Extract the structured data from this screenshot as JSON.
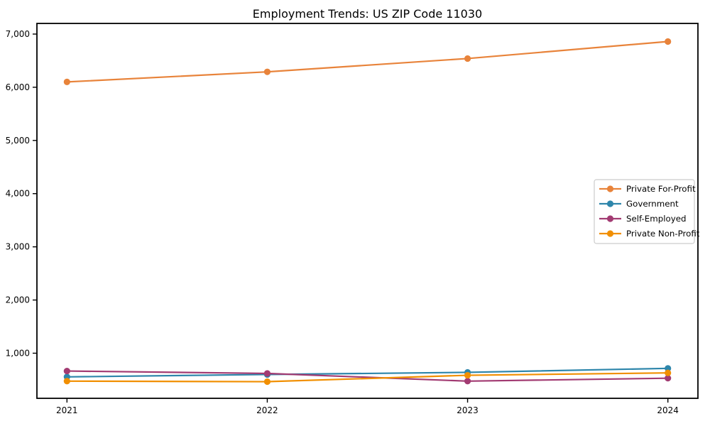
{
  "chart_data": {
    "type": "line",
    "title": "Employment Trends: US ZIP Code 11030",
    "xlabel": "",
    "ylabel": "",
    "x": [
      2021,
      2022,
      2023,
      2024
    ],
    "x_tick_labels": [
      "2021",
      "2022",
      "2023",
      "2024"
    ],
    "y_ticks": [
      1000,
      2000,
      3000,
      4000,
      5000,
      6000,
      7000
    ],
    "y_tick_labels": [
      "1,000",
      "2,000",
      "3,000",
      "4,000",
      "5,000",
      "6,000",
      "7,000"
    ],
    "xlim": [
      2020.85,
      2024.15
    ],
    "ylim": [
      152,
      7200
    ],
    "grid": false,
    "legend_position": "center-right",
    "series": [
      {
        "name": "Private For-Profit",
        "color": "#E8833A",
        "values": [
          6100,
          6290,
          6540,
          6860
        ]
      },
      {
        "name": "Government",
        "color": "#2E86AB",
        "values": [
          555,
          600,
          640,
          715
        ]
      },
      {
        "name": "Self-Employed",
        "color": "#A23B72",
        "values": [
          665,
          620,
          475,
          530
        ]
      },
      {
        "name": "Private Non-Profit",
        "color": "#F18F01",
        "values": [
          475,
          465,
          585,
          630
        ]
      }
    ],
    "style": {
      "spine_color": "#000000",
      "tick_color": "#000000",
      "text_color": "#000000",
      "legend_border_color": "#cccccc",
      "background": "#ffffff"
    }
  }
}
